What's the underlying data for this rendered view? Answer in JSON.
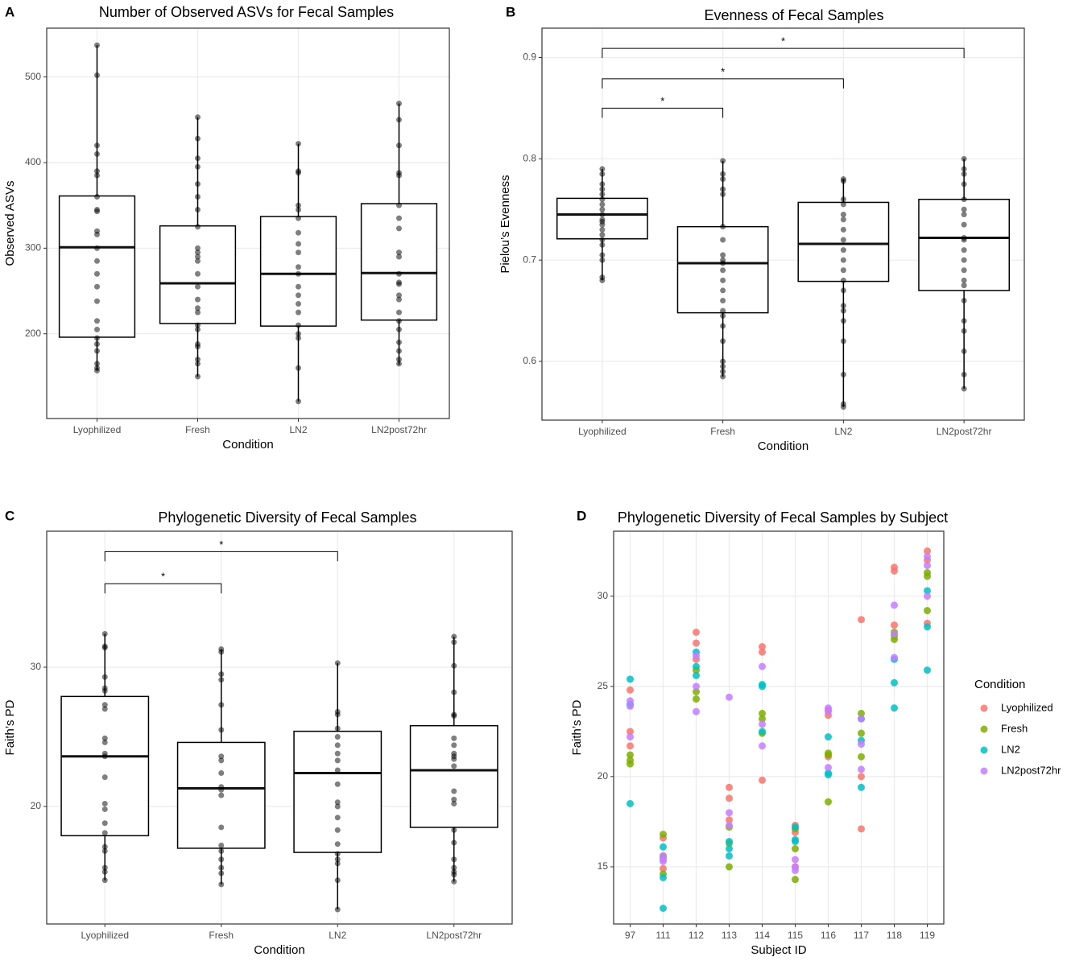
{
  "chart_data": [
    {
      "type": "box",
      "panel": "A",
      "title": "Number of Observed ASVs for Fecal Samples",
      "x_label": "Condition",
      "y_label": "Observed ASVs",
      "categories": [
        "Lyophilized",
        "Fresh",
        "LN2",
        "LN2post72hr"
      ],
      "ylim": [
        101,
        557
      ],
      "yticks": [
        200,
        300,
        400,
        500
      ],
      "grid": true,
      "boxes": [
        {
          "min": 157,
          "q1": 196,
          "median": 301,
          "q3": 361,
          "max": 537
        },
        {
          "min": 150,
          "q1": 212,
          "median": 259,
          "q3": 326,
          "max": 453
        },
        {
          "min": 121,
          "q1": 209,
          "median": 270,
          "q3": 337,
          "max": 422
        },
        {
          "min": 164,
          "q1": 216,
          "median": 271,
          "q3": 352,
          "max": 469
        }
      ],
      "points": [
        [
          537,
          502,
          420,
          410,
          390,
          385,
          360,
          345,
          343,
          320,
          316,
          300,
          285,
          270,
          255,
          238,
          215,
          205,
          195,
          188,
          180,
          165,
          160,
          157
        ],
        [
          453,
          428,
          405,
          395,
          375,
          360,
          345,
          325,
          300,
          295,
          290,
          285,
          270,
          255,
          240,
          230,
          225,
          210,
          205,
          188,
          185,
          170,
          165,
          150
        ],
        [
          422,
          390,
          388,
          350,
          345,
          335,
          318,
          305,
          295,
          278,
          270,
          255,
          245,
          235,
          225,
          210,
          200,
          195,
          160,
          121
        ],
        [
          469,
          450,
          420,
          388,
          385,
          350,
          335,
          323,
          295,
          290,
          270,
          260,
          258,
          245,
          240,
          225,
          215,
          205,
          190,
          180,
          170,
          165
        ]
      ],
      "brackets": []
    },
    {
      "type": "box",
      "panel": "B",
      "title": "Evenness of Fecal Samples",
      "x_label": "Condition",
      "y_label": "Pielou’s Evenness",
      "categories": [
        "Lyophilized",
        "Fresh",
        "LN2",
        "LN2post72hr"
      ],
      "ylim": [
        0.542,
        0.929
      ],
      "yticks": [
        0.6,
        0.7,
        0.8,
        0.9
      ],
      "grid": true,
      "boxes": [
        {
          "min": 0.68,
          "q1": 0.721,
          "median": 0.745,
          "q3": 0.761,
          "max": 0.79
        },
        {
          "min": 0.585,
          "q1": 0.648,
          "median": 0.697,
          "q3": 0.733,
          "max": 0.798
        },
        {
          "min": 0.555,
          "q1": 0.679,
          "median": 0.716,
          "q3": 0.757,
          "max": 0.78
        },
        {
          "min": 0.573,
          "q1": 0.67,
          "median": 0.722,
          "q3": 0.76,
          "max": 0.8
        }
      ],
      "points": [
        [
          0.79,
          0.785,
          0.775,
          0.77,
          0.765,
          0.76,
          0.755,
          0.75,
          0.745,
          0.74,
          0.738,
          0.735,
          0.73,
          0.725,
          0.72,
          0.715,
          0.705,
          0.7,
          0.683,
          0.68
        ],
        [
          0.798,
          0.785,
          0.78,
          0.77,
          0.765,
          0.733,
          0.72,
          0.705,
          0.7,
          0.697,
          0.69,
          0.68,
          0.67,
          0.66,
          0.65,
          0.645,
          0.635,
          0.62,
          0.6,
          0.595,
          0.59,
          0.585
        ],
        [
          0.78,
          0.778,
          0.76,
          0.755,
          0.745,
          0.74,
          0.73,
          0.72,
          0.71,
          0.7,
          0.69,
          0.68,
          0.67,
          0.655,
          0.65,
          0.64,
          0.62,
          0.587,
          0.558,
          0.555
        ],
        [
          0.8,
          0.79,
          0.785,
          0.775,
          0.76,
          0.75,
          0.745,
          0.735,
          0.722,
          0.72,
          0.71,
          0.7,
          0.69,
          0.68,
          0.675,
          0.66,
          0.64,
          0.63,
          0.61,
          0.587,
          0.573
        ]
      ],
      "brackets": [
        {
          "from": 0,
          "to": 1,
          "y": 0.85,
          "label": "*"
        },
        {
          "from": 0,
          "to": 2,
          "y": 0.879,
          "label": "*"
        },
        {
          "from": 0,
          "to": 3,
          "y": 0.909,
          "label": "*"
        }
      ]
    },
    {
      "type": "box",
      "panel": "C",
      "title": "Phylogenetic Diversity of Fecal Samples",
      "x_label": "Condition",
      "y_label": "Faith’s PD",
      "categories": [
        "Lyophilized",
        "Fresh",
        "LN2",
        "LN2post72hr"
      ],
      "ylim": [
        11.56,
        39.77
      ],
      "yticks": [
        20,
        30
      ],
      "grid": true,
      "boxes": [
        {
          "min": 14.7,
          "q1": 17.9,
          "median": 23.6,
          "q3": 27.9,
          "max": 32.4
        },
        {
          "min": 14.4,
          "q1": 17.0,
          "median": 21.3,
          "q3": 24.6,
          "max": 31.3
        },
        {
          "min": 12.6,
          "q1": 16.7,
          "median": 22.4,
          "q3": 25.4,
          "max": 30.3
        },
        {
          "min": 14.6,
          "q1": 18.5,
          "median": 22.6,
          "q3": 25.8,
          "max": 32.2
        }
      ],
      "points": [
        [
          32.4,
          31.5,
          31.4,
          29.3,
          28.5,
          28.3,
          27.3,
          27.0,
          24.9,
          24.6,
          23.8,
          23.6,
          22.1,
          20.2,
          19.8,
          18.8,
          18.1,
          17.1,
          16.8,
          15.6,
          15.3,
          14.7
        ],
        [
          31.3,
          31.1,
          29.5,
          29.1,
          27.3,
          25.5,
          23.6,
          23.3,
          22.4,
          21.4,
          21.2,
          20.8,
          18.5,
          17.2,
          16.8,
          16.2,
          15.6,
          15.2,
          14.4
        ],
        [
          30.3,
          26.8,
          26.6,
          25.6,
          25.0,
          24.4,
          23.8,
          23.3,
          22.6,
          21.6,
          20.3,
          20.0,
          19.2,
          18.3,
          17.3,
          16.6,
          16.2,
          15.9,
          14.7,
          12.6
        ],
        [
          32.2,
          31.8,
          30.1,
          28.2,
          26.6,
          26.5,
          24.9,
          24.4,
          23.8,
          23.6,
          23.4,
          22.9,
          21.1,
          20.5,
          20.2,
          18.3,
          17.4,
          16.2,
          15.6,
          15.3,
          15.1,
          14.6
        ]
      ],
      "brackets": [
        {
          "from": 0,
          "to": 1,
          "y": 36.0,
          "label": "*"
        },
        {
          "from": 0,
          "to": 2,
          "y": 38.3,
          "label": "*"
        }
      ]
    },
    {
      "type": "scatter",
      "panel": "D",
      "title": "Phylogenetic Diversity of Fecal Samples by Subject",
      "x_label": "Subject ID",
      "y_label": "Faith’s PD",
      "categories": [
        "97",
        "111",
        "112",
        "113",
        "114",
        "115",
        "116",
        "117",
        "118",
        "119"
      ],
      "ylim": [
        11.83,
        33.6
      ],
      "yticks": [
        15,
        20,
        25,
        30
      ],
      "grid": true,
      "legend_title": "Condition",
      "legend": "right",
      "series": [
        {
          "name": "Lyophilized",
          "color": "#F8766D",
          "values": [
            [
              24.8,
              22.5,
              21.7
            ],
            [
              16.6,
              14.9,
              15.5
            ],
            [
              28.0,
              27.4,
              26.5
            ],
            [
              19.4,
              18.8,
              17.6
            ],
            [
              27.2,
              26.9,
              19.8
            ],
            [
              17.3,
              16.9,
              15.0
            ],
            [
              23.7,
              23.4,
              21.1
            ],
            [
              28.7,
              20.0,
              17.1
            ],
            [
              31.6,
              31.4,
              28.4
            ],
            [
              32.5,
              32.0,
              28.5
            ]
          ]
        },
        {
          "name": "Fresh",
          "color": "#7CAE00",
          "values": [
            [
              21.2,
              20.9,
              20.7
            ],
            [
              16.8,
              15.6,
              14.6
            ],
            [
              25.9,
              24.7,
              24.3
            ],
            [
              17.2,
              16.3,
              15.0
            ],
            [
              23.5,
              23.2,
              22.4
            ],
            [
              17.1,
              16.0,
              14.3
            ],
            [
              21.3,
              21.2,
              18.6
            ],
            [
              23.5,
              22.4,
              21.1
            ],
            [
              28.0,
              27.8,
              27.6
            ],
            [
              31.3,
              31.1,
              29.2
            ]
          ]
        },
        {
          "name": "LN2",
          "color": "#00BFC4",
          "values": [
            [
              25.4,
              24.0,
              18.5
            ],
            [
              16.1,
              14.4,
              12.7
            ],
            [
              26.9,
              26.1,
              25.6
            ],
            [
              16.4,
              16.0,
              15.6
            ],
            [
              25.1,
              25.0,
              22.5
            ],
            [
              17.2,
              16.5,
              16.4
            ],
            [
              22.2,
              20.2,
              20.1
            ],
            [
              22.0,
              19.4,
              23.2
            ],
            [
              26.5,
              25.2,
              23.8
            ],
            [
              30.3,
              28.3,
              25.9
            ]
          ]
        },
        {
          "name": "LN2post72hr",
          "color": "#C77CFF",
          "values": [
            [
              24.2,
              22.2,
              23.9
            ],
            [
              15.6,
              15.3,
              15.4
            ],
            [
              26.7,
              25.0,
              23.6
            ],
            [
              24.4,
              18.0,
              17.3
            ],
            [
              26.1,
              22.9,
              21.7
            ],
            [
              15.4,
              15.0,
              14.8
            ],
            [
              23.8,
              20.5,
              23.6
            ],
            [
              23.2,
              21.8,
              20.4
            ],
            [
              29.5,
              27.9,
              26.6
            ],
            [
              32.2,
              31.7,
              30.0
            ]
          ]
        }
      ]
    }
  ]
}
